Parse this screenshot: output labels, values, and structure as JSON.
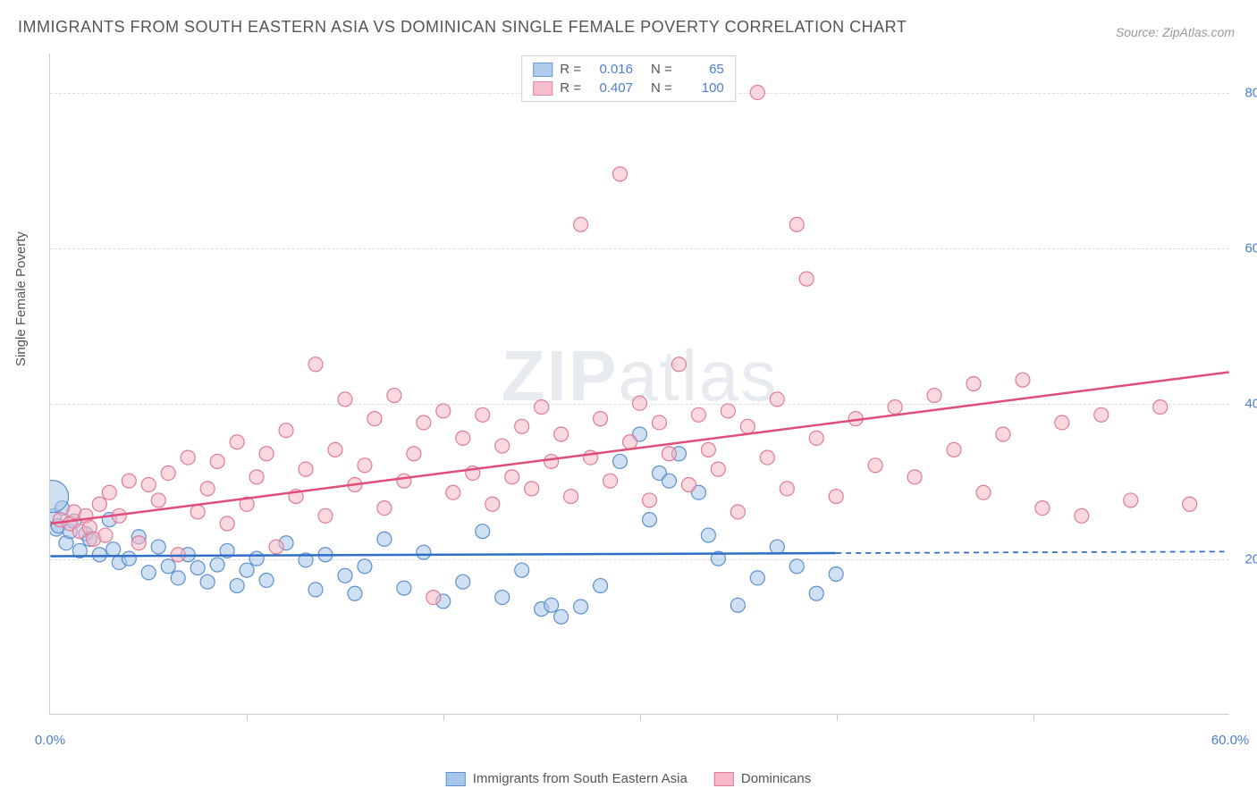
{
  "title": "IMMIGRANTS FROM SOUTH EASTERN ASIA VS DOMINICAN SINGLE FEMALE POVERTY CORRELATION CHART",
  "source": "Source: ZipAtlas.com",
  "ylabel": "Single Female Poverty",
  "watermark_part1": "ZIP",
  "watermark_part2": "atlas",
  "chart": {
    "type": "scatter",
    "xlim": [
      0,
      60
    ],
    "ylim": [
      0,
      85
    ],
    "x_ticks": [
      0,
      60
    ],
    "x_tick_labels": [
      "0.0%",
      "60.0%"
    ],
    "x_minor_ticks": [
      10,
      20,
      30,
      40,
      50
    ],
    "y_ticks": [
      20,
      40,
      60,
      80
    ],
    "y_tick_labels": [
      "20.0%",
      "40.0%",
      "60.0%",
      "80.0%"
    ],
    "background_color": "#ffffff",
    "grid_color": "#dddddd",
    "axis_color": "#cccccc",
    "tick_label_color": "#4a7fd0",
    "series": [
      {
        "name": "Immigrants from South Eastern Asia",
        "fill": "#a8c6ea",
        "stroke": "#5b8fd0",
        "fill_opacity": 0.55,
        "marker_r": 8,
        "reg_line": {
          "x1": 0,
          "y1": 20.3,
          "x2": 40,
          "y2": 20.7,
          "color": "#2f6fc5",
          "width": 2.5,
          "dash_extend_x": 60
        },
        "R": "0.016",
        "N": "65",
        "points": [
          [
            0.2,
            25.5
          ],
          [
            0.3,
            23.8
          ],
          [
            0.4,
            24.2
          ],
          [
            0.6,
            26.5
          ],
          [
            0.8,
            22.0
          ],
          [
            1.0,
            23.5
          ],
          [
            1.2,
            24.8
          ],
          [
            1.5,
            21.0
          ],
          [
            1.8,
            23.2
          ],
          [
            2.0,
            22.5
          ],
          [
            2.5,
            20.5
          ],
          [
            3.0,
            25.0
          ],
          [
            3.2,
            21.2
          ],
          [
            3.5,
            19.5
          ],
          [
            4.0,
            20.0
          ],
          [
            4.5,
            22.8
          ],
          [
            5.0,
            18.2
          ],
          [
            5.5,
            21.5
          ],
          [
            6.0,
            19.0
          ],
          [
            6.5,
            17.5
          ],
          [
            7.0,
            20.5
          ],
          [
            7.5,
            18.8
          ],
          [
            8.0,
            17.0
          ],
          [
            8.5,
            19.2
          ],
          [
            9.0,
            21.0
          ],
          [
            9.5,
            16.5
          ],
          [
            10.0,
            18.5
          ],
          [
            10.5,
            20.0
          ],
          [
            11.0,
            17.2
          ],
          [
            12.0,
            22.0
          ],
          [
            13.0,
            19.8
          ],
          [
            13.5,
            16.0
          ],
          [
            14.0,
            20.5
          ],
          [
            15.0,
            17.8
          ],
          [
            15.5,
            15.5
          ],
          [
            16.0,
            19.0
          ],
          [
            17.0,
            22.5
          ],
          [
            18.0,
            16.2
          ],
          [
            19.0,
            20.8
          ],
          [
            20.0,
            14.5
          ],
          [
            21.0,
            17.0
          ],
          [
            22.0,
            23.5
          ],
          [
            23.0,
            15.0
          ],
          [
            24.0,
            18.5
          ],
          [
            25.0,
            13.5
          ],
          [
            25.5,
            14.0
          ],
          [
            26.0,
            12.5
          ],
          [
            27.0,
            13.8
          ],
          [
            28.0,
            16.5
          ],
          [
            29.0,
            32.5
          ],
          [
            30.0,
            36.0
          ],
          [
            30.5,
            25.0
          ],
          [
            31.0,
            31.0
          ],
          [
            31.5,
            30.0
          ],
          [
            32.0,
            33.5
          ],
          [
            33.0,
            28.5
          ],
          [
            33.5,
            23.0
          ],
          [
            34.0,
            20.0
          ],
          [
            35.0,
            14.0
          ],
          [
            36.0,
            17.5
          ],
          [
            37.0,
            21.5
          ],
          [
            38.0,
            19.0
          ],
          [
            39.0,
            15.5
          ],
          [
            40.0,
            18.0
          ]
        ],
        "big_point": [
          0.1,
          28.0,
          18
        ]
      },
      {
        "name": "Dominicans",
        "fill": "#f5b8c7",
        "stroke": "#e07a95",
        "fill_opacity": 0.55,
        "marker_r": 8,
        "reg_line": {
          "x1": 0,
          "y1": 24.5,
          "x2": 60,
          "y2": 44.0,
          "color": "#e04d7a",
          "width": 2.5
        },
        "R": "0.407",
        "N": "100",
        "points": [
          [
            0.5,
            25.0
          ],
          [
            1.0,
            24.5
          ],
          [
            1.2,
            26.0
          ],
          [
            1.5,
            23.5
          ],
          [
            1.8,
            25.5
          ],
          [
            2.0,
            24.0
          ],
          [
            2.2,
            22.5
          ],
          [
            2.5,
            27.0
          ],
          [
            2.8,
            23.0
          ],
          [
            3.0,
            28.5
          ],
          [
            3.5,
            25.5
          ],
          [
            4.0,
            30.0
          ],
          [
            4.5,
            22.0
          ],
          [
            5.0,
            29.5
          ],
          [
            5.5,
            27.5
          ],
          [
            6.0,
            31.0
          ],
          [
            6.5,
            20.5
          ],
          [
            7.0,
            33.0
          ],
          [
            7.5,
            26.0
          ],
          [
            8.0,
            29.0
          ],
          [
            8.5,
            32.5
          ],
          [
            9.0,
            24.5
          ],
          [
            9.5,
            35.0
          ],
          [
            10.0,
            27.0
          ],
          [
            10.5,
            30.5
          ],
          [
            11.0,
            33.5
          ],
          [
            11.5,
            21.5
          ],
          [
            12.0,
            36.5
          ],
          [
            12.5,
            28.0
          ],
          [
            13.0,
            31.5
          ],
          [
            13.5,
            45.0
          ],
          [
            14.0,
            25.5
          ],
          [
            14.5,
            34.0
          ],
          [
            15.0,
            40.5
          ],
          [
            15.5,
            29.5
          ],
          [
            16.0,
            32.0
          ],
          [
            16.5,
            38.0
          ],
          [
            17.0,
            26.5
          ],
          [
            17.5,
            41.0
          ],
          [
            18.0,
            30.0
          ],
          [
            18.5,
            33.5
          ],
          [
            19.0,
            37.5
          ],
          [
            19.5,
            15.0
          ],
          [
            20.0,
            39.0
          ],
          [
            20.5,
            28.5
          ],
          [
            21.0,
            35.5
          ],
          [
            21.5,
            31.0
          ],
          [
            22.0,
            38.5
          ],
          [
            22.5,
            27.0
          ],
          [
            23.0,
            34.5
          ],
          [
            23.5,
            30.5
          ],
          [
            24.0,
            37.0
          ],
          [
            24.5,
            29.0
          ],
          [
            25.0,
            39.5
          ],
          [
            25.5,
            32.5
          ],
          [
            26.0,
            36.0
          ],
          [
            26.5,
            28.0
          ],
          [
            27.0,
            63.0
          ],
          [
            27.5,
            33.0
          ],
          [
            28.0,
            38.0
          ],
          [
            28.5,
            30.0
          ],
          [
            29.0,
            69.5
          ],
          [
            29.5,
            35.0
          ],
          [
            30.0,
            40.0
          ],
          [
            30.5,
            27.5
          ],
          [
            31.0,
            37.5
          ],
          [
            31.5,
            33.5
          ],
          [
            32.0,
            45.0
          ],
          [
            32.5,
            29.5
          ],
          [
            33.0,
            38.5
          ],
          [
            33.5,
            34.0
          ],
          [
            34.0,
            31.5
          ],
          [
            34.5,
            39.0
          ],
          [
            35.0,
            26.0
          ],
          [
            35.5,
            37.0
          ],
          [
            36.0,
            80.0
          ],
          [
            36.5,
            33.0
          ],
          [
            37.0,
            40.5
          ],
          [
            37.5,
            29.0
          ],
          [
            38.0,
            63.0
          ],
          [
            38.5,
            56.0
          ],
          [
            39.0,
            35.5
          ],
          [
            40.0,
            28.0
          ],
          [
            41.0,
            38.0
          ],
          [
            42.0,
            32.0
          ],
          [
            43.0,
            39.5
          ],
          [
            44.0,
            30.5
          ],
          [
            45.0,
            41.0
          ],
          [
            46.0,
            34.0
          ],
          [
            47.0,
            42.5
          ],
          [
            47.5,
            28.5
          ],
          [
            48.5,
            36.0
          ],
          [
            49.5,
            43.0
          ],
          [
            50.5,
            26.5
          ],
          [
            51.5,
            37.5
          ],
          [
            52.5,
            25.5
          ],
          [
            53.5,
            38.5
          ],
          [
            55.0,
            27.5
          ],
          [
            56.5,
            39.5
          ],
          [
            58.0,
            27.0
          ]
        ]
      }
    ]
  },
  "legend_top_labels": {
    "R": "R =",
    "N": "N ="
  },
  "legend_bottom": [
    {
      "label": "Immigrants from South Eastern Asia",
      "fill": "#a8c6ea",
      "stroke": "#5b8fd0"
    },
    {
      "label": "Dominicans",
      "fill": "#f5b8c7",
      "stroke": "#e07a95"
    }
  ]
}
